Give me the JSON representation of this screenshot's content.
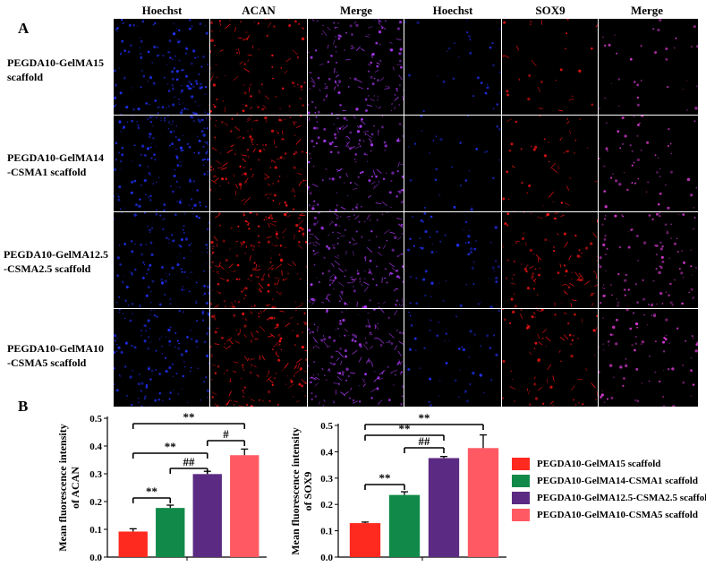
{
  "panel_a_label": "A",
  "panel_b_label": "B",
  "column_headers": [
    "Hoechst",
    "ACAN",
    "Merge",
    "Hoechst",
    "SOX9",
    "Merge"
  ],
  "row_labels": [
    "PEGDA10-GelMA15\nscaffold",
    "PEGDA10-GelMA14\n-CSMA1 scaffold",
    "PEGDA10-GelMA12.5\n-CSMA2.5 scaffold",
    "PEGDA10-GelMA10\n-CSMA5 scaffold"
  ],
  "legend": [
    {
      "label": "PEGDA10-GelMA15 scaffold",
      "color": "#ff2a1f"
    },
    {
      "label": "PEGDA10-GelMA14-CSMA1 scaffold",
      "color": "#118a49"
    },
    {
      "label": "PEGDA10-GelMA12.5-CSMA2.5 scaffold",
      "color": "#5b2b83"
    },
    {
      "label": "PEGDA10-GelMA10-CSMA5 scaffold",
      "color": "#ff5a63"
    }
  ],
  "chart_data": [
    {
      "type": "bar",
      "categories": [
        "PEGDA10-GelMA15 scaffold",
        "PEGDA10-GelMA14-CSMA1 scaffold",
        "PEGDA10-GelMA12.5-CSMA2.5 scaffold",
        "PEGDA10-GelMA10-CSMA5 scaffold"
      ],
      "values": [
        0.092,
        0.177,
        0.299,
        0.367
      ],
      "errors": [
        0.01,
        0.01,
        0.01,
        0.022
      ],
      "ylabel": "Mean fluorescence intensity\nof ACAN",
      "ylim": [
        0,
        0.5
      ],
      "yticks": [
        "0.0",
        "0.1",
        "0.2",
        "0.3",
        "0.4",
        "0.5"
      ],
      "colors": [
        "#ff2a1f",
        "#118a49",
        "#5b2b83",
        "#ff5a63"
      ],
      "significance": [
        {
          "from": 0,
          "to": 1,
          "label": "**"
        },
        {
          "from": 0,
          "to": 2,
          "label": "**"
        },
        {
          "from": 1,
          "to": 2,
          "label": "##"
        },
        {
          "from": 2,
          "to": 3,
          "label": "#"
        },
        {
          "from": 0,
          "to": 3,
          "label": "**"
        }
      ]
    },
    {
      "type": "bar",
      "categories": [
        "PEGDA10-GelMA15 scaffold",
        "PEGDA10-GelMA14-CSMA1 scaffold",
        "PEGDA10-GelMA12.5-CSMA2.5 scaffold",
        "PEGDA10-GelMA10-CSMA5 scaffold"
      ],
      "values": [
        0.129,
        0.236,
        0.376,
        0.414
      ],
      "errors": [
        0.004,
        0.012,
        0.006,
        0.05
      ],
      "ylabel": "Mean fluorescence intensity\nof SOX9",
      "ylim": [
        0,
        0.5
      ],
      "yticks": [
        "0.0",
        "0.1",
        "0.2",
        "0.3",
        "0.4",
        "0.5"
      ],
      "colors": [
        "#ff2a1f",
        "#118a49",
        "#5b2b83",
        "#ff5a63"
      ],
      "significance": [
        {
          "from": 0,
          "to": 1,
          "label": "**"
        },
        {
          "from": 1,
          "to": 2,
          "label": "##"
        },
        {
          "from": 0,
          "to": 2,
          "label": "**"
        },
        {
          "from": 0,
          "to": 3,
          "label": "**"
        }
      ]
    }
  ]
}
